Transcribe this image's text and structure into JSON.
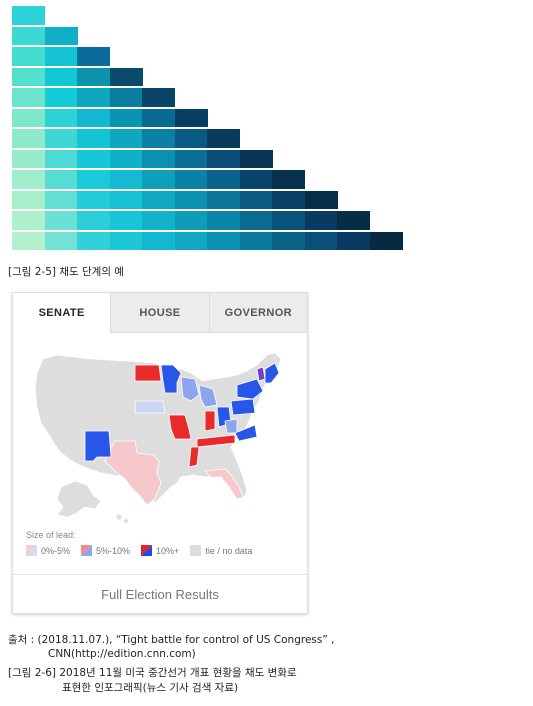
{
  "palette": {
    "rows": [
      [
        "#2dd3d8"
      ],
      [
        "#3dd8d4",
        "#10afc7"
      ],
      [
        "#44dccf",
        "#13c3d1",
        "#0a6c9a"
      ],
      [
        "#53e0cd",
        "#13c8d5",
        "#0b93ac",
        "#0a4a6c"
      ],
      [
        "#6ce3cb",
        "#14ccd8",
        "#0fa7c0",
        "#0a7ea0",
        "#0a4466"
      ],
      [
        "#7fe7c9",
        "#2bd2d6",
        "#12b8cf",
        "#0b94b1",
        "#096a91",
        "#083f60"
      ],
      [
        "#8ce9c9",
        "#3fd6d5",
        "#14c4d5",
        "#0fa6bf",
        "#0a80a2",
        "#0a5a84",
        "#083a59"
      ],
      [
        "#97ebca",
        "#4dd9d4",
        "#16c8d7",
        "#11b0c9",
        "#0b90b0",
        "#0a6f95",
        "#0a4c77",
        "#083553"
      ],
      [
        "#a0edcb",
        "#57dcd4",
        "#1bcad8",
        "#13bad1",
        "#0da0bb",
        "#0a82a6",
        "#0a638b",
        "#09446d",
        "#07314d"
      ],
      [
        "#a8eecc",
        "#62ded4",
        "#22ccd9",
        "#16c0d5",
        "#10a9c3",
        "#0b92b2",
        "#0a7499",
        "#0a5a82",
        "#093f67",
        "#072e49"
      ],
      [
        "#aeefcd",
        "#6be0d4",
        "#2bced9",
        "#18c4d7",
        "#12b2cb",
        "#0d9db9",
        "#0a85a8",
        "#0a6a90",
        "#0a537c",
        "#093b62",
        "#072c45"
      ],
      [
        "#b4f0ce",
        "#73e2d5",
        "#33d0da",
        "#1bc7d8",
        "#14b8ce",
        "#10a7c2",
        "#0b92b2",
        "#0a7b9f",
        "#0a6389",
        "#0a4f79",
        "#093860",
        "#072a42"
      ]
    ]
  },
  "caption1": "[그림 2-5] 채도 단계의 예",
  "card": {
    "tabs": [
      {
        "label": "SENATE",
        "active": true
      },
      {
        "label": "HOUSE",
        "active": false
      },
      {
        "label": "GOVERNOR",
        "active": false
      }
    ],
    "legend_title": "Size of lead:",
    "legend": [
      {
        "label": "0%-5%",
        "color_a": "#f4cdd3",
        "color_b": "#d5dcf5"
      },
      {
        "label": "5%-10%",
        "color_a": "#f08a96",
        "color_b": "#8fa5ec"
      },
      {
        "label": "10%+",
        "color_a": "#e8202c",
        "color_b": "#1e4be0"
      },
      {
        "label": "tie / no data",
        "color_a": "#dddddd",
        "color_b": "#dddddd"
      }
    ],
    "footer_link": "Full Election Results",
    "map_colors": {
      "base": "#dddddd",
      "red_strong": "#e82a2a",
      "red_light": "#f6c8cc",
      "blue_strong": "#2756e8",
      "blue_mid": "#8da4ee",
      "blue_light": "#ccd7f4",
      "purple": "#7a3cc8"
    }
  },
  "source_line1": "출처 : (2018.11.07.), “Tight battle for control of US Congress” ,",
  "source_line2": "CNN(http://edition.cnn.com)",
  "caption2_line1": "[그림 2-6] 2018년 11월 미국 중간선거 개표 현황을 채도 변화로",
  "caption2_line2": "표현한 인포그래픽(뉴스 기사 검색 자료)"
}
